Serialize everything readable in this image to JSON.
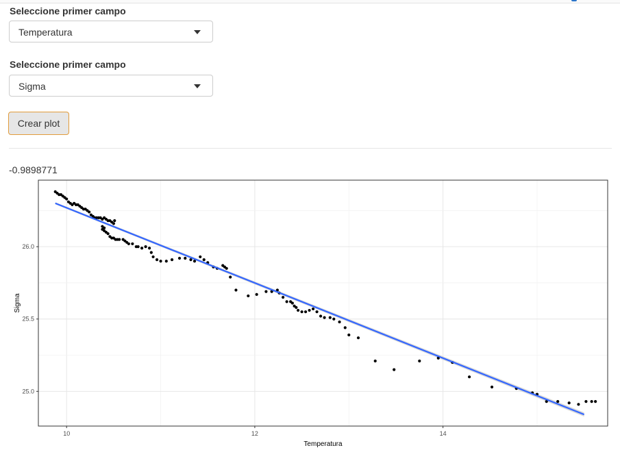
{
  "controls": {
    "field1": {
      "label": "Seleccione primer campo",
      "value": "Temperatura"
    },
    "field2": {
      "label": "Seleccione primer campo",
      "value": "Sigma"
    },
    "button_label": "Crear plot"
  },
  "output": {
    "correlation": "-0.9898771"
  },
  "colors": {
    "fit_line": "#3366ff",
    "ribbon": "#c8c8c8",
    "points": "#000000",
    "accent_border": "#e19b3a"
  },
  "chart_data": {
    "type": "scatter",
    "xlabel": "Temperatura",
    "ylabel": "Sigma",
    "xlim": [
      9.7,
      15.75
    ],
    "ylim": [
      24.76,
      26.46
    ],
    "xticks": [
      10,
      12,
      14
    ],
    "yticks": [
      25.0,
      25.5,
      26.0
    ],
    "ytick_labels": [
      "25.0",
      "25.5",
      "26.0"
    ],
    "grid": true,
    "fit_line": {
      "x": [
        9.88,
        15.5
      ],
      "y": [
        26.3,
        24.84
      ]
    },
    "points": [
      [
        9.88,
        26.38
      ],
      [
        9.9,
        26.37
      ],
      [
        9.92,
        26.36
      ],
      [
        9.94,
        26.36
      ],
      [
        9.96,
        26.35
      ],
      [
        9.98,
        26.34
      ],
      [
        10.0,
        26.33
      ],
      [
        10.02,
        26.31
      ],
      [
        10.04,
        26.3
      ],
      [
        10.06,
        26.29
      ],
      [
        10.08,
        26.3
      ],
      [
        10.1,
        26.29
      ],
      [
        10.12,
        26.29
      ],
      [
        10.14,
        26.28
      ],
      [
        10.16,
        26.27
      ],
      [
        10.18,
        26.26
      ],
      [
        10.2,
        26.26
      ],
      [
        10.22,
        26.25
      ],
      [
        10.24,
        26.24
      ],
      [
        10.26,
        26.22
      ],
      [
        10.28,
        26.21
      ],
      [
        10.3,
        26.2
      ],
      [
        10.32,
        26.2
      ],
      [
        10.34,
        26.2
      ],
      [
        10.36,
        26.2
      ],
      [
        10.38,
        26.19
      ],
      [
        10.4,
        26.2
      ],
      [
        10.42,
        26.19
      ],
      [
        10.44,
        26.18
      ],
      [
        10.46,
        26.18
      ],
      [
        10.48,
        26.17
      ],
      [
        10.5,
        26.16
      ],
      [
        10.51,
        26.18
      ],
      [
        10.38,
        26.14
      ],
      [
        10.38,
        26.12
      ],
      [
        10.4,
        26.13
      ],
      [
        10.4,
        26.11
      ],
      [
        10.42,
        26.1
      ],
      [
        10.44,
        26.09
      ],
      [
        10.46,
        26.07
      ],
      [
        10.48,
        26.06
      ],
      [
        10.5,
        26.06
      ],
      [
        10.52,
        26.05
      ],
      [
        10.54,
        26.05
      ],
      [
        10.56,
        26.05
      ],
      [
        10.6,
        26.05
      ],
      [
        10.62,
        26.04
      ],
      [
        10.64,
        26.03
      ],
      [
        10.66,
        26.02
      ],
      [
        10.7,
        26.02
      ],
      [
        10.74,
        26.0
      ],
      [
        10.76,
        26.0
      ],
      [
        10.8,
        25.99
      ],
      [
        10.84,
        26.0
      ],
      [
        10.88,
        25.99
      ],
      [
        10.9,
        25.96
      ],
      [
        10.92,
        25.93
      ],
      [
        10.96,
        25.91
      ],
      [
        11.0,
        25.9
      ],
      [
        11.06,
        25.9
      ],
      [
        11.12,
        25.91
      ],
      [
        11.2,
        25.92
      ],
      [
        11.26,
        25.92
      ],
      [
        11.32,
        25.91
      ],
      [
        11.36,
        25.9
      ],
      [
        11.42,
        25.93
      ],
      [
        11.46,
        25.91
      ],
      [
        11.5,
        25.89
      ],
      [
        11.56,
        25.86
      ],
      [
        11.6,
        25.85
      ],
      [
        11.66,
        25.87
      ],
      [
        11.68,
        25.86
      ],
      [
        11.7,
        25.85
      ],
      [
        11.74,
        25.79
      ],
      [
        11.8,
        25.7
      ],
      [
        11.93,
        25.66
      ],
      [
        12.02,
        25.67
      ],
      [
        12.12,
        25.69
      ],
      [
        12.18,
        25.69
      ],
      [
        12.24,
        25.7
      ],
      [
        12.26,
        25.68
      ],
      [
        12.3,
        25.65
      ],
      [
        12.34,
        25.62
      ],
      [
        12.38,
        25.62
      ],
      [
        12.4,
        25.61
      ],
      [
        12.42,
        25.59
      ],
      [
        12.44,
        25.58
      ],
      [
        12.46,
        25.56
      ],
      [
        12.5,
        25.55
      ],
      [
        12.54,
        25.55
      ],
      [
        12.58,
        25.56
      ],
      [
        12.62,
        25.57
      ],
      [
        12.66,
        25.55
      ],
      [
        12.7,
        25.52
      ],
      [
        12.74,
        25.51
      ],
      [
        12.8,
        25.51
      ],
      [
        12.84,
        25.5
      ],
      [
        12.9,
        25.48
      ],
      [
        12.96,
        25.44
      ],
      [
        13.0,
        25.39
      ],
      [
        13.1,
        25.37
      ],
      [
        13.28,
        25.21
      ],
      [
        13.48,
        25.15
      ],
      [
        13.75,
        25.21
      ],
      [
        13.95,
        25.23
      ],
      [
        14.1,
        25.2
      ],
      [
        14.28,
        25.1
      ],
      [
        14.52,
        25.03
      ],
      [
        14.78,
        25.02
      ],
      [
        14.95,
        24.99
      ],
      [
        15.0,
        24.98
      ],
      [
        15.1,
        24.93
      ],
      [
        15.22,
        24.93
      ],
      [
        15.34,
        24.92
      ],
      [
        15.44,
        24.91
      ],
      [
        15.52,
        24.93
      ],
      [
        15.58,
        24.93
      ],
      [
        15.62,
        24.93
      ]
    ]
  }
}
